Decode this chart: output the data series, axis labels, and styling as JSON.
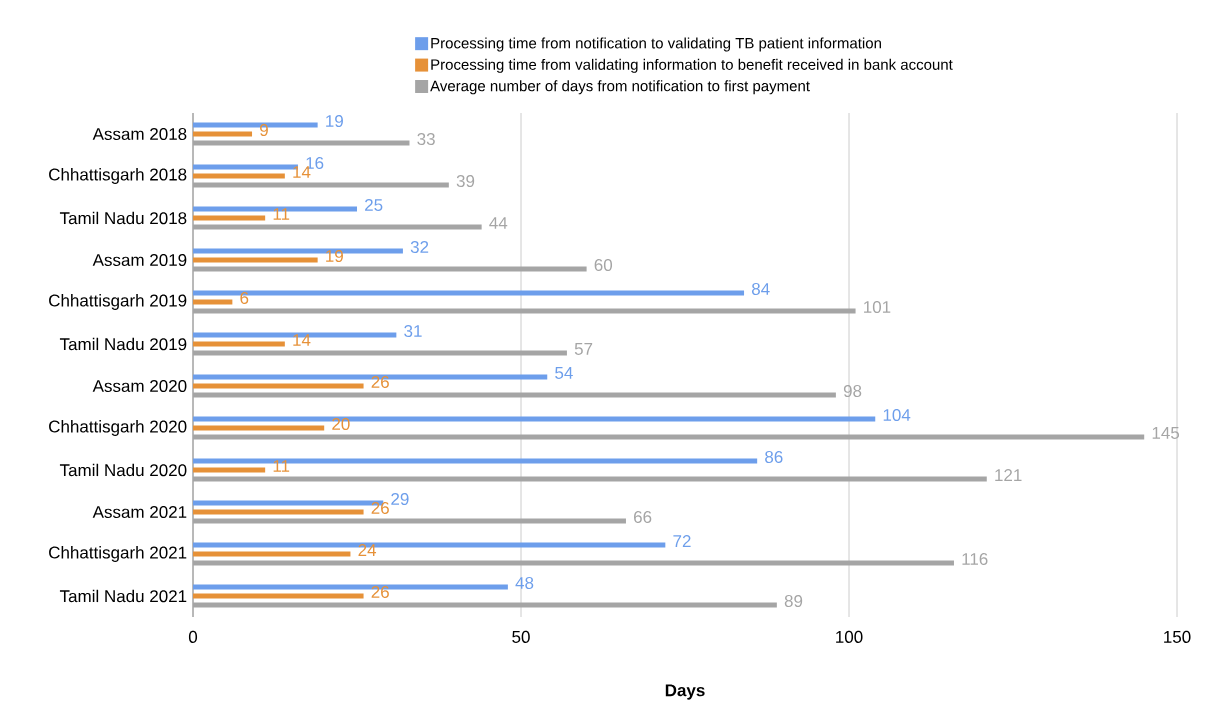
{
  "chart_data": {
    "type": "bar",
    "orientation": "horizontal",
    "xlabel": "Days",
    "categories": [
      "Assam 2018",
      "Chhattisgarh 2018",
      "Tamil Nadu 2018",
      "Assam 2019",
      "Chhattisgarh 2019",
      "Tamil Nadu 2019",
      "Assam 2020",
      "Chhattisgarh 2020",
      "Tamil Nadu 2020",
      "Assam 2021",
      "Chhattisgarh 2021",
      "Tamil Nadu 2021"
    ],
    "series": [
      {
        "name": "Processing time from notification to validating TB patient information",
        "color": "#6d9eeb",
        "values": [
          19,
          16,
          25,
          32,
          84,
          31,
          54,
          104,
          86,
          29,
          72,
          48
        ]
      },
      {
        "name": "Processing time from validating information to benefit received in bank account",
        "color": "#e69138",
        "values": [
          9,
          14,
          11,
          19,
          6,
          14,
          26,
          20,
          11,
          26,
          24,
          26
        ]
      },
      {
        "name": "Average number of days from notification to first payment",
        "color": "#a5a5a5",
        "values": [
          33,
          39,
          44,
          60,
          101,
          57,
          98,
          145,
          121,
          66,
          116,
          89
        ]
      }
    ],
    "xlim": [
      0,
      150
    ],
    "xticks": [
      0,
      50,
      100,
      150
    ],
    "grid": "x",
    "legend": "top",
    "data_labels": true
  }
}
